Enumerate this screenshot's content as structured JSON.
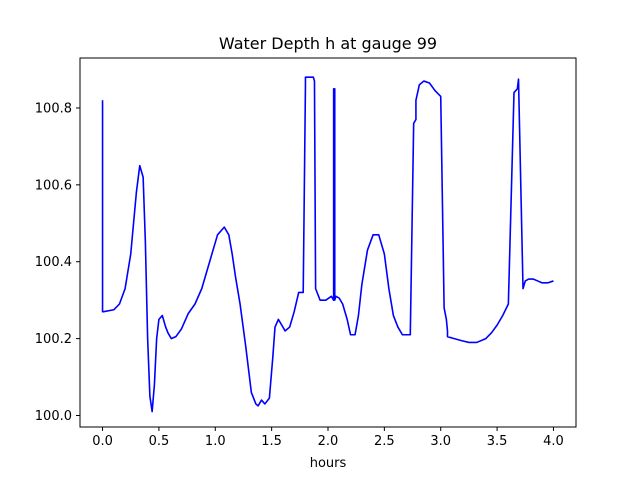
{
  "chart_data": {
    "type": "line",
    "title": "Water Depth h at gauge 99",
    "xlabel": "hours",
    "ylabel": "",
    "xlim": [
      -0.2,
      4.2
    ],
    "ylim": [
      99.97,
      100.93
    ],
    "xticks": [
      0.0,
      0.5,
      1.0,
      1.5,
      2.0,
      2.5,
      3.0,
      3.5,
      4.0
    ],
    "xtick_labels": [
      "0.0",
      "0.5",
      "1.0",
      "1.5",
      "2.0",
      "2.5",
      "3.0",
      "3.5",
      "4.0"
    ],
    "yticks": [
      100.0,
      100.2,
      100.4,
      100.6,
      100.8
    ],
    "ytick_labels": [
      "100.0",
      "100.2",
      "100.4",
      "100.6",
      "100.8"
    ],
    "grid": false,
    "legend": "none",
    "line_color": "#0000ff",
    "series": [
      {
        "x": [
          0.0,
          0.0,
          0.01,
          0.1,
          0.15,
          0.2,
          0.25,
          0.3,
          0.33,
          0.36,
          0.38,
          0.4,
          0.42,
          0.44,
          0.46,
          0.48,
          0.5,
          0.53,
          0.56,
          0.58,
          0.61,
          0.65,
          0.7,
          0.76,
          0.82,
          0.88,
          0.95,
          1.02,
          1.08,
          1.12,
          1.15,
          1.18,
          1.22,
          1.27,
          1.32,
          1.36,
          1.38,
          1.41,
          1.44,
          1.48,
          1.51,
          1.53,
          1.56,
          1.58,
          1.62,
          1.66,
          1.7,
          1.74,
          1.78,
          1.8,
          1.8,
          1.84,
          1.87,
          1.88,
          1.89,
          1.89,
          1.93,
          1.98,
          2.03,
          2.05,
          2.05,
          2.06,
          2.06,
          2.07,
          2.1,
          2.13,
          2.17,
          2.2,
          2.24,
          2.27,
          2.3,
          2.35,
          2.4,
          2.45,
          2.5,
          2.54,
          2.58,
          2.62,
          2.66,
          2.7,
          2.73,
          2.76,
          2.78,
          2.78,
          2.81,
          2.85,
          2.9,
          2.95,
          3.0,
          3.03,
          3.05,
          3.06,
          3.06,
          3.12,
          3.18,
          3.25,
          3.32,
          3.4,
          3.45,
          3.5,
          3.55,
          3.6,
          3.65,
          3.68,
          3.69,
          3.73,
          3.74,
          3.75,
          3.78,
          3.82,
          3.86,
          3.9,
          3.95,
          4.0
        ],
        "y": [
          100.82,
          100.27,
          100.27,
          100.275,
          100.29,
          100.33,
          100.42,
          100.58,
          100.65,
          100.62,
          100.45,
          100.2,
          100.05,
          100.01,
          100.08,
          100.2,
          100.25,
          100.26,
          100.23,
          100.215,
          100.2,
          100.205,
          100.225,
          100.265,
          100.29,
          100.33,
          100.4,
          100.47,
          100.49,
          100.47,
          100.42,
          100.36,
          100.29,
          100.18,
          100.06,
          100.03,
          100.025,
          100.04,
          100.03,
          100.045,
          100.15,
          100.23,
          100.25,
          100.24,
          100.22,
          100.23,
          100.27,
          100.32,
          100.32,
          100.86,
          100.88,
          100.88,
          100.88,
          100.87,
          100.33,
          100.33,
          100.3,
          100.3,
          100.31,
          100.3,
          100.85,
          100.85,
          100.3,
          100.31,
          100.305,
          100.29,
          100.25,
          100.21,
          100.21,
          100.26,
          100.34,
          100.43,
          100.47,
          100.47,
          100.42,
          100.33,
          100.26,
          100.23,
          100.21,
          100.21,
          100.21,
          100.76,
          100.77,
          100.82,
          100.86,
          100.87,
          100.865,
          100.845,
          100.83,
          100.28,
          100.25,
          100.22,
          100.205,
          100.2,
          100.195,
          100.19,
          100.19,
          100.2,
          100.215,
          100.235,
          100.26,
          100.29,
          100.84,
          100.85,
          100.875,
          100.33,
          100.34,
          100.35,
          100.355,
          100.355,
          100.35,
          100.345,
          100.345,
          100.35
        ]
      }
    ]
  }
}
